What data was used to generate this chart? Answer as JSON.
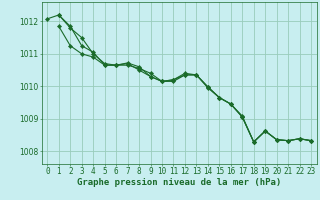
{
  "background_color": "#c8eef0",
  "grid_color": "#99ccbb",
  "line_color": "#1a6b2a",
  "marker_color": "#1a6b2a",
  "xlabel": "Graphe pression niveau de la mer (hPa)",
  "xlabel_color": "#1a6b2a",
  "xlabel_fontsize": 6.5,
  "tick_color": "#1a6b2a",
  "tick_fontsize": 5.5,
  "xlim": [
    -0.5,
    23.5
  ],
  "ylim": [
    1007.6,
    1012.6
  ],
  "yticks": [
    1008,
    1009,
    1010,
    1011,
    1012
  ],
  "xticks": [
    0,
    1,
    2,
    3,
    4,
    5,
    6,
    7,
    8,
    9,
    10,
    11,
    12,
    13,
    14,
    15,
    16,
    17,
    18,
    19,
    20,
    21,
    22,
    23
  ],
  "series1_x": [
    1,
    2,
    3,
    4,
    5,
    6,
    7,
    8,
    9,
    10,
    11,
    12,
    13,
    14,
    15,
    16,
    17,
    18,
    19,
    20,
    21,
    22,
    23
  ],
  "series1_y": [
    1012.2,
    1011.8,
    1011.5,
    1011.0,
    1010.7,
    1010.65,
    1010.65,
    1010.55,
    1010.4,
    1010.15,
    1010.15,
    1010.35,
    1010.35,
    1009.98,
    1009.65,
    1009.45,
    1009.05,
    1008.28,
    1008.62,
    1008.35,
    1008.32,
    1008.38,
    1008.32
  ],
  "series2_x": [
    1,
    2,
    3,
    4,
    5,
    6,
    7,
    8,
    9,
    10,
    11,
    12,
    13,
    14,
    15,
    16,
    17,
    18,
    19,
    20,
    21,
    22,
    23
  ],
  "series2_y": [
    1011.85,
    1011.25,
    1011.0,
    1010.9,
    1010.65,
    1010.65,
    1010.7,
    1010.5,
    1010.3,
    1010.15,
    1010.2,
    1010.35,
    1010.35,
    1009.95,
    1009.65,
    1009.45,
    1009.05,
    1008.28,
    1008.62,
    1008.35,
    1008.32,
    1008.38,
    1008.32
  ],
  "series3_x": [
    0,
    1,
    2,
    3,
    4,
    5,
    6,
    7,
    8,
    9,
    10,
    11,
    12,
    13,
    14,
    15,
    16,
    17,
    18,
    19,
    20,
    21,
    22,
    23
  ],
  "series3_y": [
    1012.08,
    1012.2,
    1011.85,
    1011.25,
    1011.05,
    1010.65,
    1010.65,
    1010.72,
    1010.6,
    1010.3,
    1010.15,
    1010.2,
    1010.4,
    1010.35,
    1009.98,
    1009.65,
    1009.45,
    1009.08,
    1008.28,
    1008.62,
    1008.35,
    1008.32,
    1008.38,
    1008.32
  ]
}
